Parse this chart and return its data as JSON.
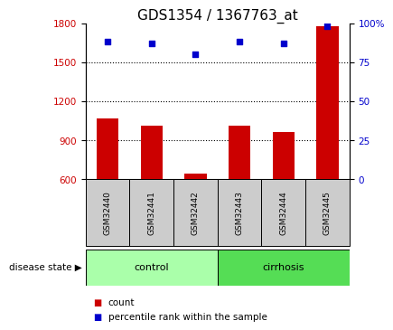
{
  "title": "GDS1354 / 1367763_at",
  "samples": [
    "GSM32440",
    "GSM32441",
    "GSM32442",
    "GSM32443",
    "GSM32444",
    "GSM32445"
  ],
  "bar_values": [
    1070,
    1010,
    640,
    1010,
    960,
    1780
  ],
  "percentile_values": [
    88,
    87,
    80,
    88,
    87,
    98
  ],
  "bar_color": "#cc0000",
  "dot_color": "#0000cc",
  "ylim_left": [
    600,
    1800
  ],
  "ylim_right": [
    0,
    100
  ],
  "yticks_left": [
    600,
    900,
    1200,
    1500,
    1800
  ],
  "yticks_right": [
    0,
    25,
    50,
    75,
    100
  ],
  "ytick_labels_right": [
    "0",
    "25",
    "50",
    "75",
    "100%"
  ],
  "grid_values": [
    900,
    1200,
    1500
  ],
  "groups": [
    {
      "label": "control",
      "count": 3,
      "color": "#aaffaa"
    },
    {
      "label": "cirrhosis",
      "count": 3,
      "color": "#55dd55"
    }
  ],
  "disease_state_label": "disease state",
  "legend_count_label": "count",
  "legend_percentile_label": "percentile rank within the sample",
  "title_fontsize": 11,
  "axis_color_left": "#cc0000",
  "axis_color_right": "#0000cc",
  "bar_width": 0.5,
  "sample_box_color": "#cccccc",
  "background_color": "#ffffff"
}
